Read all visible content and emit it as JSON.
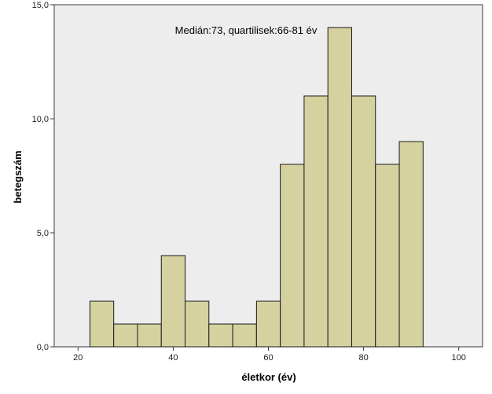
{
  "chart_data": {
    "type": "bar",
    "subtype": "histogram",
    "annotation": "Medián:73, quartilisek:66-81 év",
    "xlabel": "életkor (év)",
    "ylabel": "betegszám",
    "xlim": [
      15,
      105
    ],
    "ylim": [
      0,
      15
    ],
    "x_ticks": [
      20,
      40,
      60,
      80,
      100
    ],
    "x_tick_labels": [
      "20",
      "40",
      "60",
      "80",
      "100"
    ],
    "y_ticks": [
      0,
      5,
      10,
      15
    ],
    "y_tick_labels": [
      "0,0",
      "5,0",
      "10,0",
      "15,0"
    ],
    "bin_edges": [
      22.5,
      27.5,
      32.5,
      37.5,
      42.5,
      47.5,
      52.5,
      57.5,
      62.5,
      67.5,
      72.5,
      77.5,
      82.5,
      87.5,
      92.5
    ],
    "values": [
      2,
      1,
      1,
      4,
      2,
      1,
      1,
      2,
      8,
      11,
      14,
      11,
      8,
      9
    ],
    "grid": false,
    "colors": {
      "plot_background": "#ededed",
      "bar_fill": "#d6d2a0",
      "bar_stroke": "#1a1a1a"
    }
  }
}
